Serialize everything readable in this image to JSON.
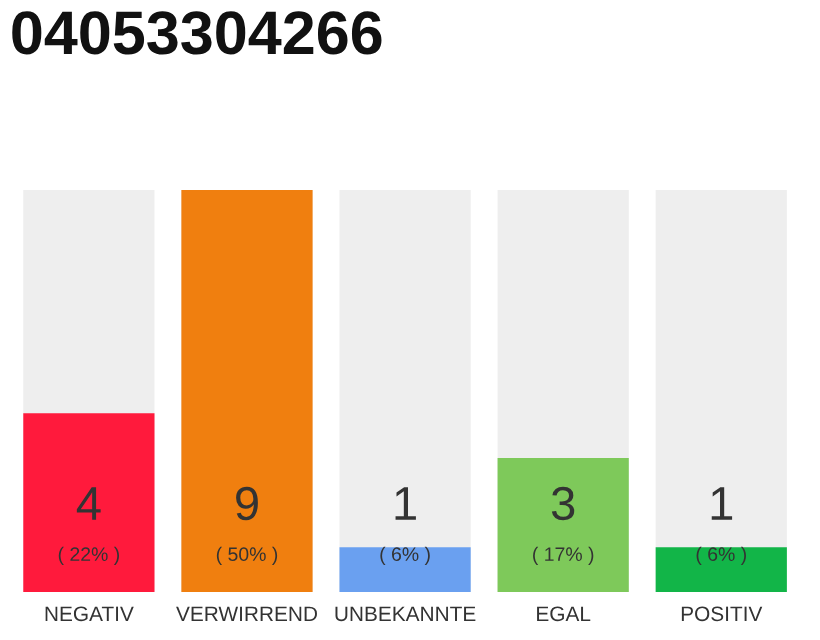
{
  "chart_data": {
    "type": "bar",
    "title": "04053304266",
    "categories": [
      "NEGATIV",
      "VERWIRREND",
      "UNBEKANNTE",
      "EGAL",
      "POSITIV"
    ],
    "values": [
      4,
      9,
      1,
      3,
      1
    ],
    "colors": [
      "#ff1a3c",
      "#f07f0f",
      "#6aa0f0",
      "#7ec95a",
      "#12b548"
    ],
    "value_labels": [
      "4\n( 22% )",
      "9\n( 50% )",
      "1\n( 6% )",
      "3\n( 17% )",
      "1\n( 6% )"
    ],
    "grid": false,
    "legend": false
  }
}
